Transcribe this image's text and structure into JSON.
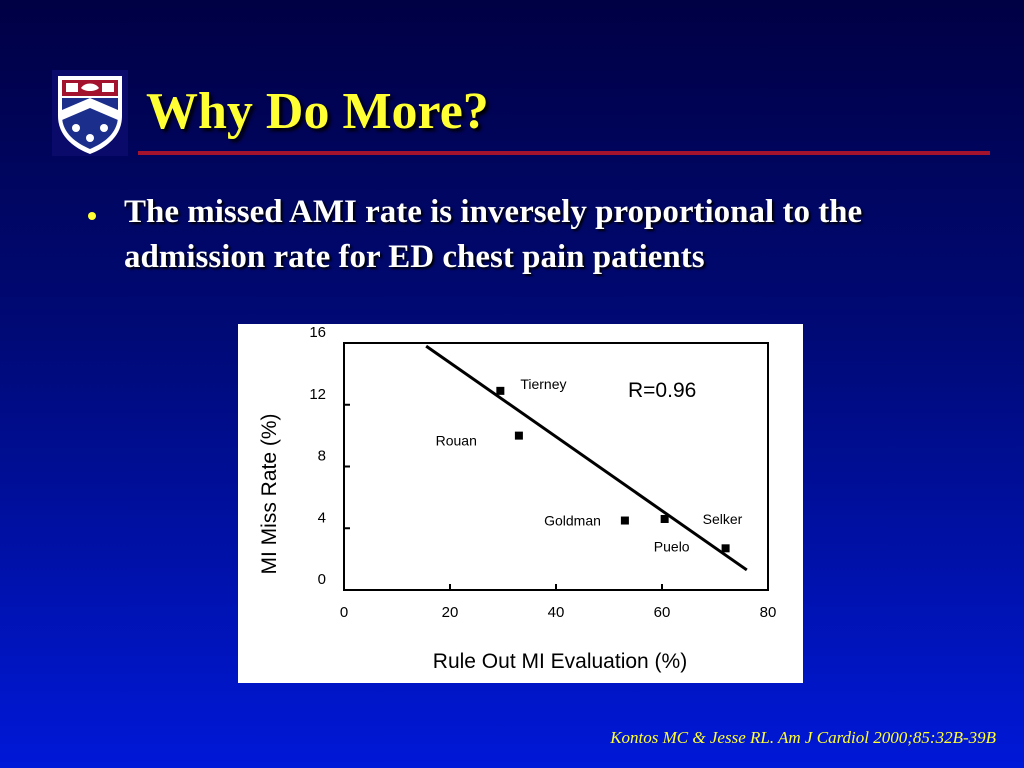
{
  "slide": {
    "title": "Why Do More?",
    "bullet": "The missed AMI rate is inversely  proportional to the admission rate for ED chest pain patients",
    "citation": "Kontos MC & Jesse RL.  Am J Cardiol  2000;85:32B-39B",
    "colors": {
      "title": "#ffff33",
      "rule": "#a4132d",
      "background_top": "#000044",
      "background_bottom": "#0018d8"
    }
  },
  "logo": {
    "icon": "university-shield-crest-icon"
  },
  "chart_data": {
    "type": "scatter",
    "xlabel": "Rule Out MI Evaluation (%)",
    "ylabel": "MI Miss Rate (%)",
    "xlim": [
      0,
      80
    ],
    "ylim": [
      0,
      16
    ],
    "x_ticks": [
      "0",
      "20",
      "40",
      "60",
      "80"
    ],
    "y_ticks": [
      "0",
      "4",
      "8",
      "12",
      "16"
    ],
    "annotation": "R=0.96",
    "points": [
      {
        "label": "Tierney",
        "x": 29.5,
        "y": 12.9
      },
      {
        "label": "Rouan",
        "x": 33,
        "y": 10
      },
      {
        "label": "Goldman",
        "x": 53,
        "y": 4.5
      },
      {
        "label": "Selker",
        "x": 60.5,
        "y": 4.6
      },
      {
        "label": "Puelo",
        "x": 72,
        "y": 2.7
      }
    ],
    "trend_line": {
      "x": [
        15.5,
        76
      ],
      "y": [
        15.8,
        1.3
      ]
    },
    "grid": false,
    "legend": "none"
  }
}
